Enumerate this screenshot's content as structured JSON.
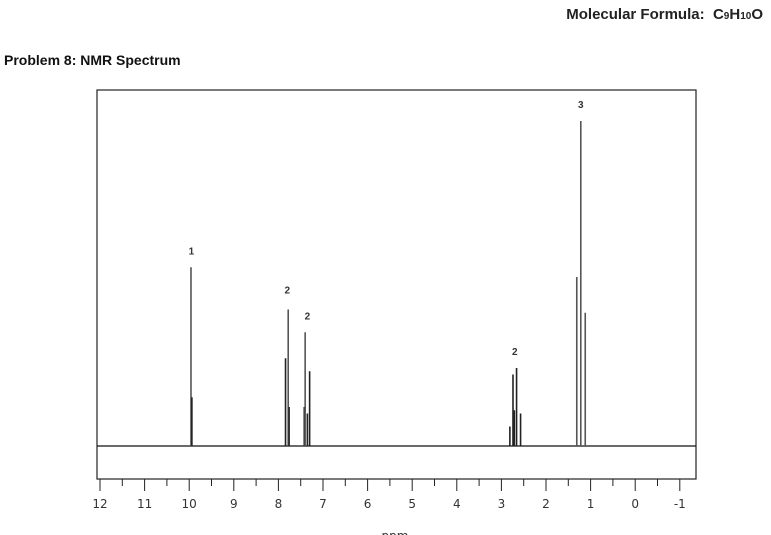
{
  "header": {
    "formula_label": "Molecular Formula:",
    "formula": "C9H10O",
    "problem_title": "Problem 8:  NMR Spectrum"
  },
  "chart_data": {
    "type": "line",
    "title": "NMR Spectrum",
    "xlabel": "ppm",
    "ylabel": "",
    "xlim": [
      12,
      -1
    ],
    "ylim": [
      0,
      100
    ],
    "x_ticks": [
      "12",
      "11",
      "10",
      "9",
      "8",
      "7",
      "6",
      "5",
      "4",
      "3",
      "2",
      "1",
      "0",
      "-1"
    ],
    "grid": false,
    "peaks": [
      {
        "ppm": 9.96,
        "intensity": 55
      },
      {
        "ppm": 9.94,
        "intensity": 15
      },
      {
        "ppm": 7.84,
        "intensity": 27
      },
      {
        "ppm": 7.78,
        "intensity": 42
      },
      {
        "ppm": 7.76,
        "intensity": 12
      },
      {
        "ppm": 7.42,
        "intensity": 12
      },
      {
        "ppm": 7.4,
        "intensity": 35
      },
      {
        "ppm": 7.35,
        "intensity": 10
      },
      {
        "ppm": 7.3,
        "intensity": 23
      },
      {
        "ppm": 2.81,
        "intensity": 6
      },
      {
        "ppm": 2.74,
        "intensity": 22
      },
      {
        "ppm": 2.71,
        "intensity": 11
      },
      {
        "ppm": 2.66,
        "intensity": 24
      },
      {
        "ppm": 2.57,
        "intensity": 10
      },
      {
        "ppm": 1.31,
        "intensity": 52
      },
      {
        "ppm": 1.22,
        "intensity": 100
      },
      {
        "ppm": 1.12,
        "intensity": 41
      }
    ],
    "annotations": [
      {
        "text": "1",
        "ppm": 9.95,
        "intensity": 59
      },
      {
        "text": "2",
        "ppm": 7.8,
        "intensity": 47
      },
      {
        "text": "2",
        "ppm": 7.35,
        "intensity": 39
      },
      {
        "text": "2",
        "ppm": 2.7,
        "intensity": 28
      },
      {
        "text": "3",
        "ppm": 1.22,
        "intensity": 104
      }
    ]
  }
}
